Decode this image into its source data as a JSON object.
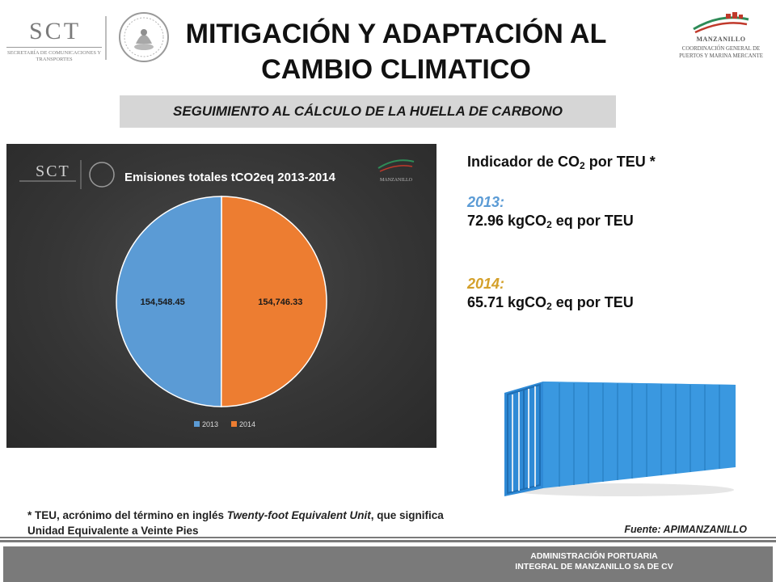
{
  "header": {
    "title_line1": "MITIGACIÓN Y ADAPTACIÓN AL",
    "title_line2": "CAMBIO CLIMATICO",
    "sct_logo_text": "SCT",
    "sct_logo_subtext": "SECRETARÍA DE COMUNICACIONES Y TRANSPORTES",
    "manzanillo_logo_text": "MANZANILLO",
    "manzanillo_logo_subtext": "COORDINACIÓN GENERAL DE PUERTOS Y MARINA MERCANTE"
  },
  "subtitle": "SEGUIMIENTO AL CÁLCULO DE LA HUELLA DE CARBONO",
  "chart_data": {
    "type": "pie",
    "title": "Emisiones totales tCO2eq 2013-2014",
    "categories": [
      "2013",
      "2014"
    ],
    "values": [
      154548.45,
      154746.33
    ],
    "data_labels": [
      "154,548.45",
      "154,746.33"
    ],
    "colors": [
      "#5b9bd5",
      "#ed7d31"
    ],
    "legend": "bottom",
    "header_logo_texts": {
      "sct": "SCT",
      "manzanillo": "MANZANILLO"
    }
  },
  "indicator": {
    "heading_prefix": "Indicador de CO",
    "heading_sub": "2",
    "heading_suffix": " por TEU *",
    "entries": [
      {
        "year": "2013:",
        "value_prefix": "72.96 kgCO",
        "value_sub": "2",
        "value_suffix": " eq por TEU",
        "color": "#5b9bd5"
      },
      {
        "year": "2014:",
        "value_prefix": "65.71 kgCO",
        "value_sub": "2",
        "value_suffix": " eq por TEU",
        "color": "#d4a02a"
      }
    ]
  },
  "footnote": {
    "part1": "* TEU, acrónimo del término en inglés ",
    "italic": "Twenty-foot Equivalent Unit",
    "part2": ", que significa Unidad Equivalente a Veinte Pies"
  },
  "source": "Fuente: APIMANZANILLO",
  "footer": {
    "line1": "ADMINISTRACIÓN PORTUARIA",
    "line2": "INTEGRAL DE MANZANILLO SA DE CV"
  }
}
